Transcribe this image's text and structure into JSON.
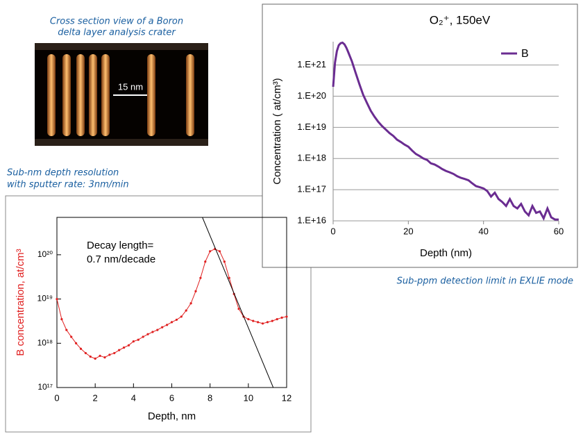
{
  "image": {
    "caption": [
      "Cross section view of a Boron",
      "delta layer analysis crater"
    ],
    "scale_label": "15 nm"
  },
  "captions": {
    "left_chart": [
      "Sub-nm depth resolution",
      "with sputter rate: 3nm/min"
    ],
    "right_chart": "Sub-ppm detection limit in EXLIE mode"
  },
  "chart_data": [
    {
      "type": "line",
      "title": "O₂⁺, 150eV",
      "x_label": "Depth (nm)",
      "y_label": "Concentration ( at/cm³)",
      "log_y": true,
      "grid": true,
      "legend": "top-right",
      "xlim": [
        0,
        60
      ],
      "xticks": [
        0,
        20,
        40,
        60
      ],
      "ylim": [
        1e+16,
        5.6e+21
      ],
      "yticks": [
        {
          "value": 1e+16,
          "label": "1.E+16"
        },
        {
          "value": 1e+17,
          "label": "1.E+17"
        },
        {
          "value": 1e+18,
          "label": "1.E+18"
        },
        {
          "value": 1e+19,
          "label": "1.E+19"
        },
        {
          "value": 1e+20,
          "label": "1.E+20"
        },
        {
          "value": 1e+21,
          "label": "1.E+21"
        }
      ],
      "x": [
        0,
        0.5,
        1,
        1.5,
        2,
        2.5,
        3,
        3.5,
        4,
        5,
        6,
        7,
        8,
        9,
        10,
        11,
        12,
        13,
        14,
        15,
        16,
        17,
        18,
        19,
        20,
        21,
        22,
        23,
        24,
        25,
        26,
        27,
        28,
        29,
        30,
        31,
        32,
        33,
        34,
        35,
        36,
        37,
        38,
        39,
        40,
        41,
        42,
        43,
        44,
        45,
        46,
        47,
        48,
        49,
        50,
        51,
        52,
        53,
        54,
        55,
        56,
        57,
        58,
        59,
        60
      ],
      "series": [
        {
          "name": "B",
          "color": "#6a2c91",
          "values": [
            2e+20,
            1.2e+21,
            2.8e+21,
            4.3e+21,
            5e+21,
            5.2e+21,
            4.6e+21,
            3.6e+21,
            2.6e+21,
            1.3e+21,
            5.5e+20,
            2.4e+20,
            1.1e+20,
            6e+19,
            3.4e+19,
            2.2e+19,
            1.5e+19,
            1.1e+19,
            8.5e+18,
            6.5e+18,
            5.3e+18,
            4e+18,
            3.4e+18,
            2.8e+18,
            2.4e+18,
            1.8e+18,
            1.4e+18,
            1.2e+18,
            1e+18,
            9e+17,
            7e+17,
            6.4e+17,
            5.5e+17,
            4.6e+17,
            4e+17,
            3.6e+17,
            3.2e+17,
            2.7e+17,
            2.4e+17,
            2.2e+17,
            2e+17,
            1.6e+17,
            1.3e+17,
            1.2e+17,
            1.1e+17,
            9e+16,
            6e+16,
            8e+16,
            5e+16,
            4e+16,
            3e+16,
            5e+16,
            3e+16,
            2.5e+16,
            3.5e+16,
            2e+16,
            1.5e+16,
            3e+16,
            1.8e+16,
            2e+16,
            1.2e+16,
            2.5e+16,
            1.3e+16,
            1.1e+16,
            1.1e+16
          ]
        }
      ]
    },
    {
      "type": "line",
      "x_label": "Depth, nm",
      "y_label": "B concentration, at/cm³",
      "y_label_color": "#e02020",
      "log_y": true,
      "grid": false,
      "annotations": [
        "Decay length=",
        "0.7 nm/decade"
      ],
      "xlim": [
        0,
        12
      ],
      "xticks": [
        0,
        2,
        4,
        6,
        8,
        10,
        12
      ],
      "ylim": [
        1e+17,
        7e+20
      ],
      "yticks": [
        {
          "value": 1e+17,
          "label": "10¹⁷"
        },
        {
          "value": 1e+18,
          "label": "10¹⁸"
        },
        {
          "value": 1e+19,
          "label": "10¹⁹"
        },
        {
          "value": 1e+20,
          "label": "10²⁰"
        }
      ],
      "x": [
        0,
        0.25,
        0.5,
        0.75,
        1,
        1.25,
        1.5,
        1.75,
        2,
        2.25,
        2.5,
        2.75,
        3,
        3.25,
        3.5,
        3.75,
        4,
        4.25,
        4.5,
        4.75,
        5,
        5.25,
        5.5,
        5.75,
        6,
        6.25,
        6.5,
        6.75,
        7,
        7.25,
        7.5,
        7.75,
        8,
        8.25,
        8.5,
        8.75,
        9,
        9.25,
        9.5,
        9.75,
        10,
        10.25,
        10.5,
        10.75,
        11,
        11.25,
        11.5,
        11.75,
        12
      ],
      "series": [
        {
          "name": "B",
          "color": "#e02020",
          "values": [
            1e+19,
            3.5e+18,
            2e+18,
            1.4e+18,
            1e+18,
            7.5e+17,
            6e+17,
            5e+17,
            4.5e+17,
            5.2e+17,
            4.8e+17,
            5.5e+17,
            6e+17,
            7e+17,
            8e+17,
            9e+17,
            1.1e+18,
            1.2e+18,
            1.4e+18,
            1.6e+18,
            1.8e+18,
            2e+18,
            2.3e+18,
            2.6e+18,
            3e+18,
            3.4e+18,
            4e+18,
            5.5e+18,
            8e+18,
            1.5e+19,
            3e+19,
            7e+19,
            1.2e+20,
            1.35e+20,
            1.2e+20,
            7e+19,
            3e+19,
            1.3e+19,
            6e+18,
            4e+18,
            3.5e+18,
            3.2e+18,
            3e+18,
            2.8e+18,
            3e+18,
            3.2e+18,
            3.5e+18,
            3.8e+18,
            4e+18
          ]
        }
      ],
      "fit_line": {
        "color": "#000000",
        "x": [
          7.6,
          11.3
        ],
        "values": [
          7e+20,
          1e+17
        ]
      }
    }
  ]
}
